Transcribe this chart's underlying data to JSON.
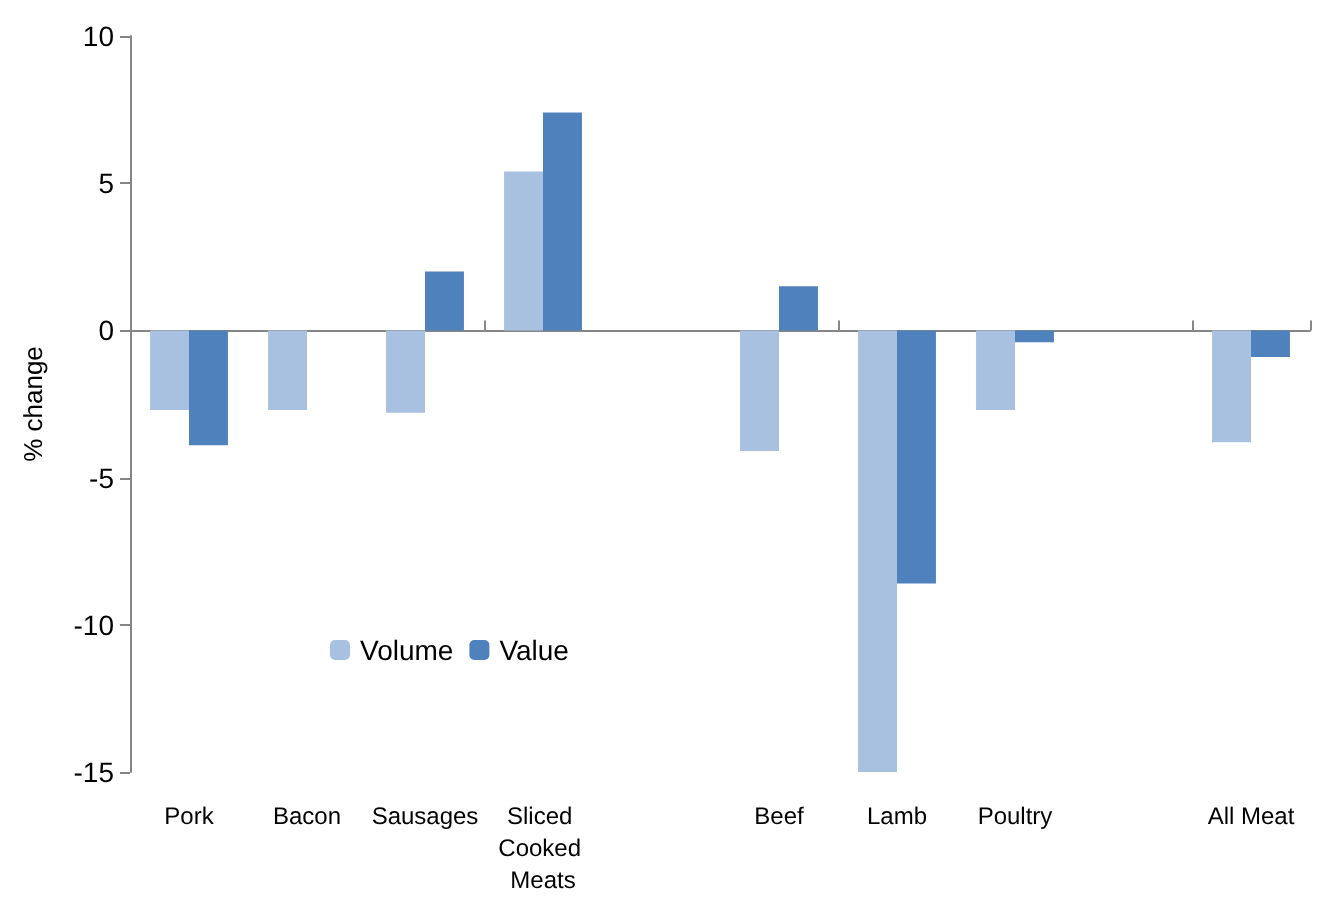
{
  "chart_data": {
    "type": "bar",
    "ylabel": "% change",
    "categories": [
      "Pork",
      "Bacon",
      "Sausages",
      "Sliced Cooked Meats",
      null,
      "Beef",
      "Lamb",
      "Poultry",
      null,
      "All Meat"
    ],
    "series": [
      {
        "name": "Volume",
        "color": "#a8c1e0",
        "values": [
          -2.7,
          -2.7,
          -2.8,
          5.4,
          null,
          -4.1,
          -15,
          -2.7,
          null,
          -3.8
        ]
      },
      {
        "name": "Value",
        "color": "#4f81bd",
        "values": [
          -3.9,
          0,
          2.0,
          7.4,
          null,
          1.5,
          -8.6,
          -0.4,
          null,
          -0.9
        ]
      }
    ],
    "ylim": [
      -15,
      10
    ],
    "yticks": [
      -15,
      -10,
      -5,
      0,
      5,
      10
    ],
    "legend": "left"
  }
}
